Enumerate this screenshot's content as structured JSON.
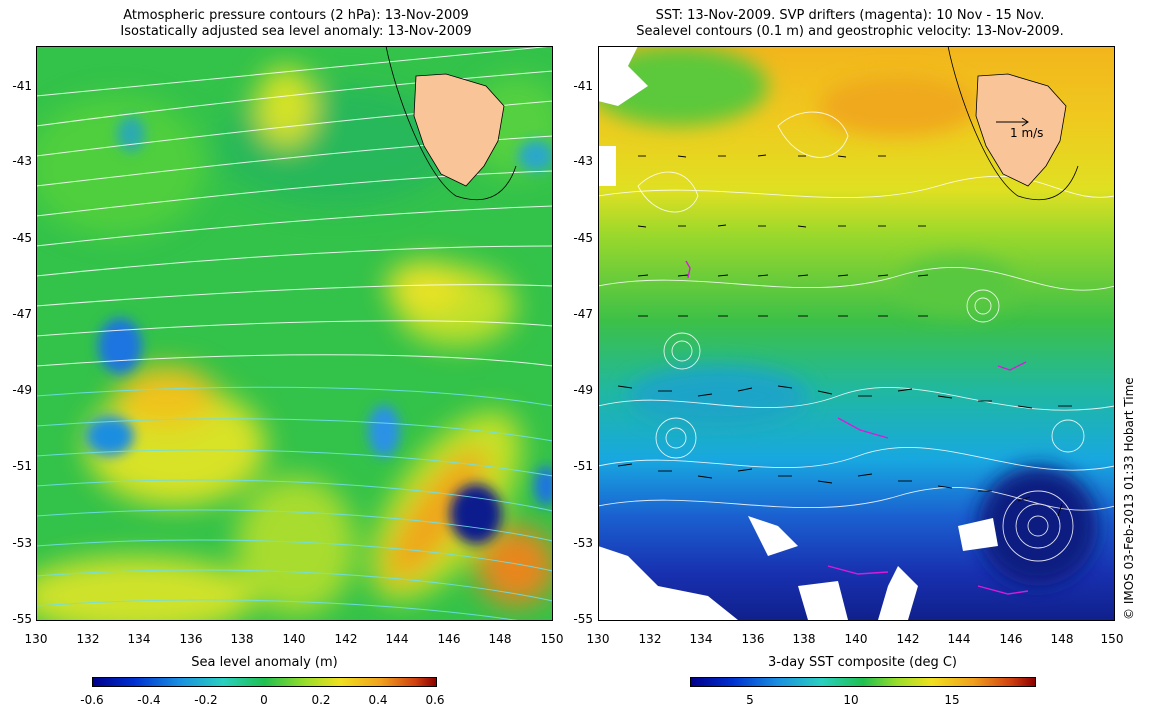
{
  "left_panel": {
    "title_line1": "Atmospheric pressure contours (2 hPa): 13-Nov-2009",
    "title_line2": "Isostatically adjusted sea level anomaly: 13-Nov-2009",
    "colorbar_title": "Sea level anomaly (m)",
    "colorbar_ticks": [
      "-0.6",
      "-0.4",
      "-0.2",
      "0",
      "0.2",
      "0.4",
      "0.6"
    ]
  },
  "right_panel": {
    "title_line1": "SST: 13-Nov-2009. SVP drifters (magenta): 10 Nov - 15 Nov.",
    "title_line2": "Sealevel contours (0.1 m) and geostrophic velocity: 13-Nov-2009.",
    "colorbar_title": "3-day SST composite (deg C)",
    "colorbar_ticks": [
      "5",
      "10",
      "15"
    ],
    "velocity_scale_label": "1 m/s"
  },
  "axes": {
    "lat_ticks": [
      "-41",
      "-43",
      "-45",
      "-47",
      "-49",
      "-51",
      "-53",
      "-55"
    ],
    "lon_ticks": [
      "130",
      "132",
      "134",
      "136",
      "138",
      "140",
      "142",
      "144",
      "146",
      "148",
      "150"
    ]
  },
  "credit": "© IMOS 03-Feb-2013 01:33 Hobart Time",
  "colors": {
    "land": "#f9c497",
    "drifter": "#d81bd8",
    "contour_light": "#ffffff",
    "contour_cyan": "#6fe0e8"
  }
}
